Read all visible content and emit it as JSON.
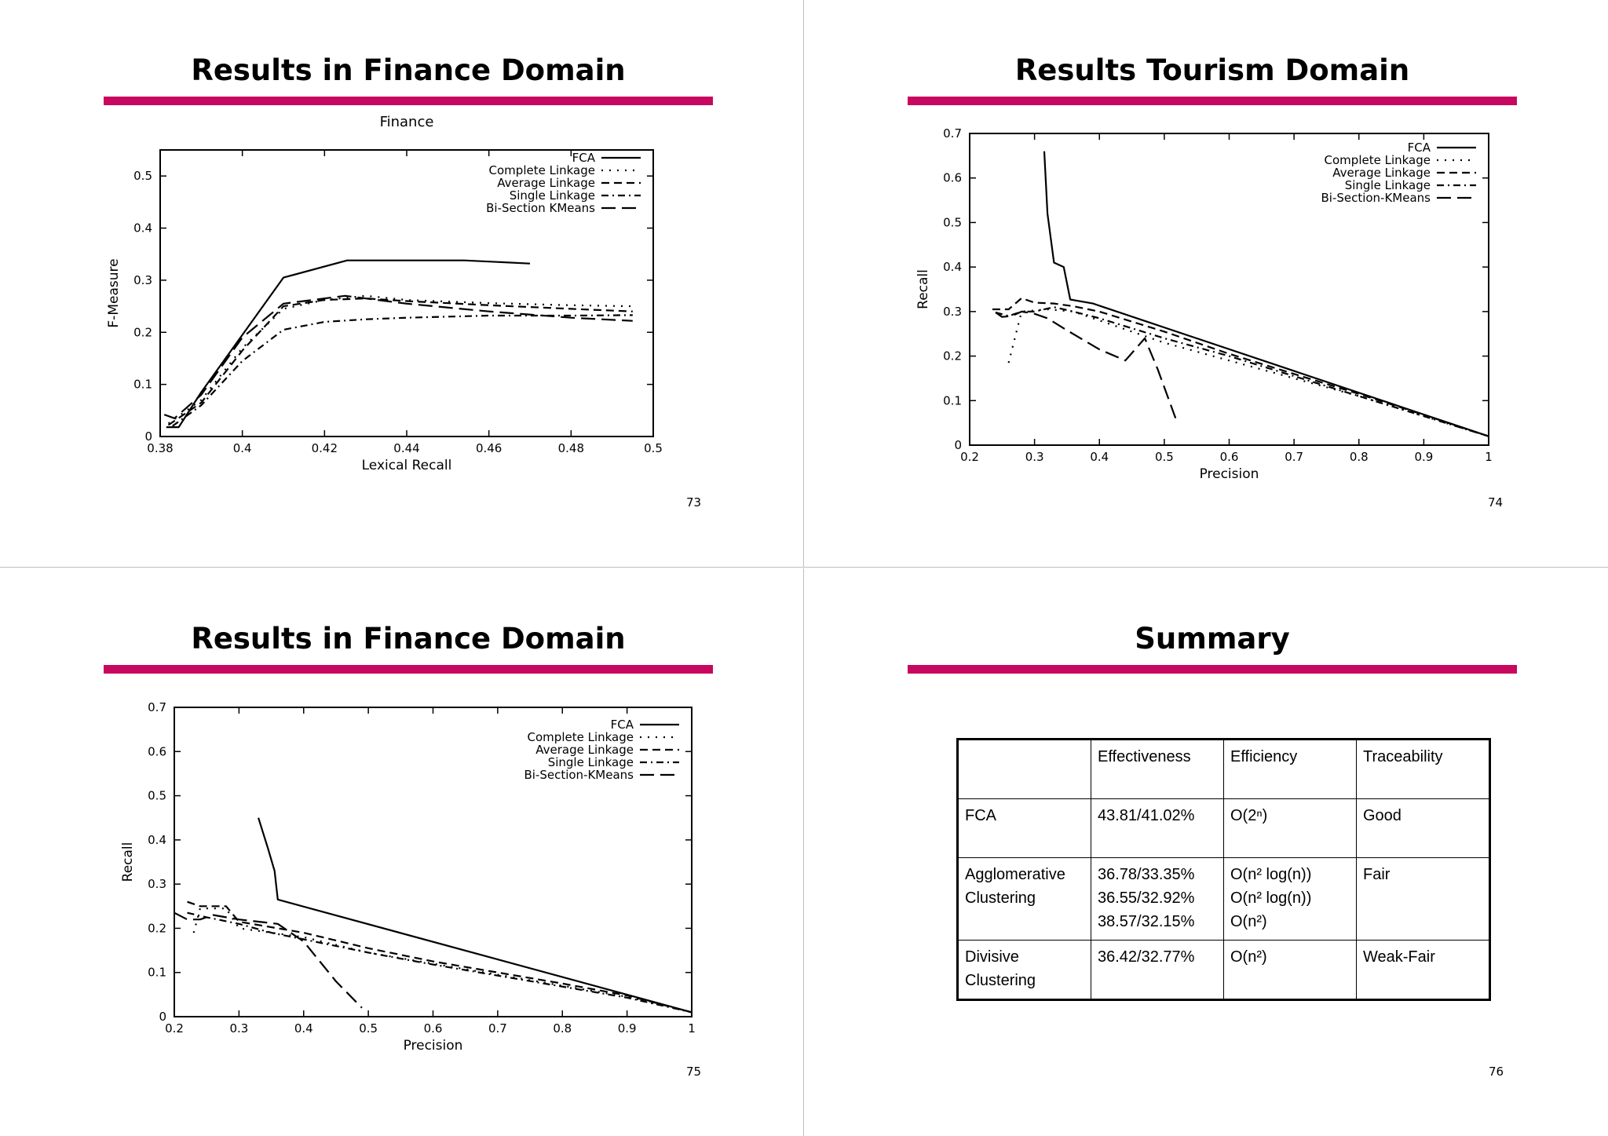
{
  "slides": [
    {
      "title": "Results in Finance Domain",
      "page": "73",
      "chart_data": {
        "type": "line",
        "title": "Finance",
        "xlabel": "Lexical Recall",
        "ylabel": "F-Measure",
        "xlim": [
          0.38,
          0.5
        ],
        "ylim": [
          0,
          0.55
        ],
        "xticks": [
          0.38,
          0.4,
          0.42,
          0.44,
          0.46,
          0.48,
          0.5
        ],
        "xtick_labels": [
          "0.38",
          "0.4",
          "0.42",
          "0.44",
          "0.46",
          "0.48",
          "0.5"
        ],
        "yticks": [
          0,
          0.1,
          0.2,
          0.3,
          0.4,
          0.5
        ],
        "ytick_labels": [
          "0",
          "0.1",
          "0.2",
          "0.3",
          "0.4",
          "0.5"
        ],
        "legend_position": "top-right",
        "series": [
          {
            "name": "FCA",
            "style": "solid",
            "x": [
              0.3815,
              0.3845,
              0.39,
              0.41,
              0.4255,
              0.454,
              0.47
            ],
            "y": [
              0.018,
              0.018,
              0.085,
              0.305,
              0.338,
              0.338,
              0.332
            ]
          },
          {
            "name": "Complete Linkage",
            "style": "dotted",
            "x": [
              0.382,
              0.39,
              0.4,
              0.41,
              0.42,
              0.43,
              0.44,
              0.46,
              0.48,
              0.495
            ],
            "y": [
              0.025,
              0.07,
              0.17,
              0.245,
              0.262,
              0.27,
              0.262,
              0.256,
              0.252,
              0.25
            ]
          },
          {
            "name": "Average Linkage",
            "style": "dashed",
            "x": [
              0.382,
              0.39,
              0.4,
              0.41,
              0.42,
              0.43,
              0.44,
              0.46,
              0.48,
              0.495
            ],
            "y": [
              0.022,
              0.065,
              0.165,
              0.25,
              0.262,
              0.265,
              0.26,
              0.252,
              0.245,
              0.24
            ]
          },
          {
            "name": "Single Linkage",
            "style": "dashdot",
            "x": [
              0.383,
              0.39,
              0.4,
              0.41,
              0.42,
              0.43,
              0.44,
              0.46,
              0.48,
              0.495
            ],
            "y": [
              0.02,
              0.06,
              0.145,
              0.205,
              0.22,
              0.225,
              0.228,
              0.232,
              0.232,
              0.233
            ]
          },
          {
            "name": "Bi-Section KMeans",
            "style": "longdash",
            "x": [
              0.381,
              0.3835,
              0.39,
              0.4,
              0.41,
              0.425,
              0.44,
              0.46,
              0.48,
              0.495
            ],
            "y": [
              0.042,
              0.035,
              0.08,
              0.19,
              0.255,
              0.27,
              0.255,
              0.24,
              0.228,
              0.222
            ]
          }
        ]
      }
    },
    {
      "title": "Results Tourism Domain",
      "page": "74",
      "chart_data": {
        "type": "line",
        "title": "",
        "xlabel": "Precision",
        "ylabel": "Recall",
        "xlim": [
          0.2,
          1
        ],
        "ylim": [
          0,
          0.7
        ],
        "xticks": [
          0.2,
          0.3,
          0.4,
          0.5,
          0.6,
          0.7,
          0.8,
          0.9,
          1
        ],
        "xtick_labels": [
          "0.2",
          "0.3",
          "0.4",
          "0.5",
          "0.6",
          "0.7",
          "0.8",
          "0.9",
          "1"
        ],
        "yticks": [
          0,
          0.1,
          0.2,
          0.3,
          0.4,
          0.5,
          0.6,
          0.7
        ],
        "ytick_labels": [
          "0",
          "0.1",
          "0.2",
          "0.3",
          "0.4",
          "0.5",
          "0.6",
          "0.7"
        ],
        "legend_position": "top-right",
        "series": [
          {
            "name": "FCA",
            "style": "solid",
            "x": [
              0.315,
              0.32,
              0.33,
              0.345,
              0.355,
              0.39,
              1.0
            ],
            "y": [
              0.66,
              0.52,
              0.41,
              0.4,
              0.327,
              0.318,
              0.02
            ]
          },
          {
            "name": "Complete Linkage",
            "style": "dotted",
            "x": [
              0.26,
              0.28,
              0.32,
              0.36,
              0.4,
              0.5,
              0.6,
              0.7,
              0.8,
              0.9,
              1.0
            ],
            "y": [
              0.185,
              0.3,
              0.305,
              0.3,
              0.28,
              0.23,
              0.19,
              0.15,
              0.11,
              0.065,
              0.02
            ]
          },
          {
            "name": "Average Linkage",
            "style": "dashed",
            "x": [
              0.235,
              0.26,
              0.28,
              0.3,
              0.33,
              0.36,
              0.4,
              0.5,
              0.6,
              0.7,
              0.8,
              0.9,
              1.0
            ],
            "y": [
              0.305,
              0.305,
              0.33,
              0.32,
              0.318,
              0.312,
              0.3,
              0.255,
              0.205,
              0.16,
              0.115,
              0.068,
              0.02
            ]
          },
          {
            "name": "Single Linkage",
            "style": "dashdot",
            "x": [
              0.24,
              0.26,
              0.28,
              0.3,
              0.33,
              0.36,
              0.4,
              0.5,
              0.6,
              0.7,
              0.8,
              0.9,
              1.0
            ],
            "y": [
              0.298,
              0.29,
              0.3,
              0.3,
              0.31,
              0.3,
              0.285,
              0.24,
              0.2,
              0.155,
              0.11,
              0.065,
              0.02
            ]
          },
          {
            "name": "Bi-Section-KMeans",
            "style": "longdash",
            "x": [
              0.24,
              0.25,
              0.265,
              0.28,
              0.3,
              0.32,
              0.35,
              0.4,
              0.44,
              0.47,
              0.49,
              0.52
            ],
            "y": [
              0.298,
              0.288,
              0.29,
              0.3,
              0.295,
              0.285,
              0.258,
              0.215,
              0.19,
              0.24,
              0.17,
              0.05
            ]
          }
        ]
      }
    },
    {
      "title": "Results in Finance Domain",
      "page": "75",
      "chart_data": {
        "type": "line",
        "title": "",
        "xlabel": "Precision",
        "ylabel": "Recall",
        "xlim": [
          0.2,
          1
        ],
        "ylim": [
          0,
          0.7
        ],
        "xticks": [
          0.2,
          0.3,
          0.4,
          0.5,
          0.6,
          0.7,
          0.8,
          0.9,
          1
        ],
        "xtick_labels": [
          "0.2",
          "0.3",
          "0.4",
          "0.5",
          "0.6",
          "0.7",
          "0.8",
          "0.9",
          "1"
        ],
        "yticks": [
          0,
          0.1,
          0.2,
          0.3,
          0.4,
          0.5,
          0.6,
          0.7
        ],
        "ytick_labels": [
          "0",
          "0.1",
          "0.2",
          "0.3",
          "0.4",
          "0.5",
          "0.6",
          "0.7"
        ],
        "legend_position": "top-right",
        "series": [
          {
            "name": "FCA",
            "style": "solid",
            "x": [
              0.33,
              0.345,
              0.355,
              0.36,
              1.0
            ],
            "y": [
              0.45,
              0.38,
              0.33,
              0.265,
              0.01
            ]
          },
          {
            "name": "Complete Linkage",
            "style": "dotted",
            "x": [
              0.23,
              0.24,
              0.28,
              0.3,
              0.4,
              0.5,
              0.6,
              0.7,
              0.8,
              0.9,
              1.0
            ],
            "y": [
              0.19,
              0.245,
              0.245,
              0.2,
              0.18,
              0.145,
              0.12,
              0.095,
              0.07,
              0.045,
              0.01
            ]
          },
          {
            "name": "Average Linkage",
            "style": "dashed",
            "x": [
              0.22,
              0.24,
              0.28,
              0.3,
              0.4,
              0.5,
              0.6,
              0.7,
              0.8,
              0.9,
              1.0
            ],
            "y": [
              0.26,
              0.25,
              0.25,
              0.215,
              0.19,
              0.155,
              0.125,
              0.1,
              0.075,
              0.048,
              0.01
            ]
          },
          {
            "name": "Single Linkage",
            "style": "dashdot",
            "x": [
              0.22,
              0.25,
              0.3,
              0.35,
              0.4,
              0.5,
              0.6,
              0.7,
              0.8,
              0.9,
              1.0
            ],
            "y": [
              0.235,
              0.225,
              0.21,
              0.19,
              0.175,
              0.145,
              0.118,
              0.093,
              0.068,
              0.043,
              0.01
            ]
          },
          {
            "name": "Bi-Section-KMeans",
            "style": "longdash",
            "x": [
              0.2,
              0.22,
              0.24,
              0.26,
              0.3,
              0.36,
              0.4,
              0.45,
              0.49
            ],
            "y": [
              0.235,
              0.22,
              0.22,
              0.23,
              0.22,
              0.21,
              0.17,
              0.08,
              0.02
            ]
          }
        ]
      }
    },
    {
      "title": "Summary",
      "page": "76",
      "table": {
        "header": [
          "",
          "Effectiveness",
          "Efficiency",
          "Traceability"
        ],
        "rows": [
          {
            "method": [
              "FCA"
            ],
            "effectiveness": [
              "43.81/41.02%"
            ],
            "efficiency": [
              "O(2ⁿ)"
            ],
            "traceability": [
              "Good"
            ]
          },
          {
            "method": [
              "Agglomerative",
              "Clustering"
            ],
            "effectiveness": [
              "36.78/33.35%",
              "36.55/32.92%",
              "38.57/32.15%"
            ],
            "efficiency": [
              "O(n² log(n))",
              "O(n² log(n))",
              "O(n²)"
            ],
            "traceability": [
              "Fair"
            ]
          },
          {
            "method": [
              "Divisive",
              "Clustering"
            ],
            "effectiveness": [
              "36.42/32.77%"
            ],
            "efficiency": [
              "O(n²)"
            ],
            "traceability": [
              "Weak-Fair"
            ]
          }
        ]
      }
    }
  ]
}
